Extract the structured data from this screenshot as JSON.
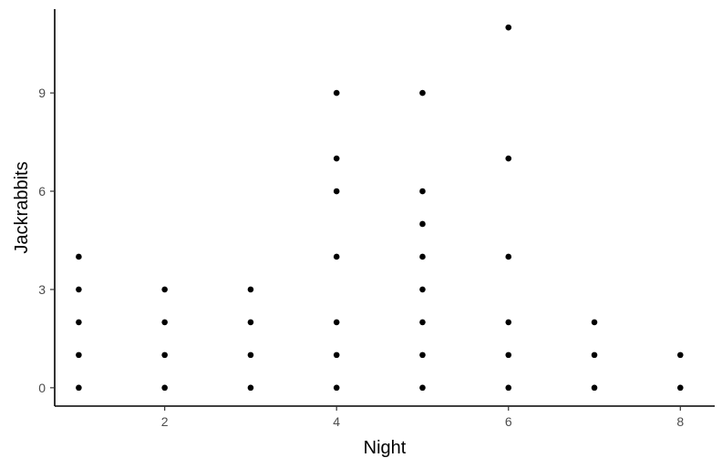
{
  "chart_data": {
    "type": "scatter",
    "title": "",
    "xlabel": "Night",
    "ylabel": "Jackrabbits",
    "xlim": [
      0.72,
      8.4
    ],
    "ylim": [
      -0.56,
      11.56
    ],
    "x_ticks": [
      2,
      4,
      6,
      8
    ],
    "y_ticks": [
      0,
      3,
      6,
      9
    ],
    "grid": false,
    "legend": "none",
    "point_color": "#000000",
    "points": [
      {
        "x": 1,
        "y": 0
      },
      {
        "x": 1,
        "y": 1
      },
      {
        "x": 1,
        "y": 2
      },
      {
        "x": 1,
        "y": 3
      },
      {
        "x": 1,
        "y": 4
      },
      {
        "x": 2,
        "y": 0
      },
      {
        "x": 2,
        "y": 1
      },
      {
        "x": 2,
        "y": 2
      },
      {
        "x": 2,
        "y": 3
      },
      {
        "x": 3,
        "y": 0
      },
      {
        "x": 3,
        "y": 1
      },
      {
        "x": 3,
        "y": 2
      },
      {
        "x": 3,
        "y": 3
      },
      {
        "x": 4,
        "y": 0
      },
      {
        "x": 4,
        "y": 1
      },
      {
        "x": 4,
        "y": 2
      },
      {
        "x": 4,
        "y": 4
      },
      {
        "x": 4,
        "y": 6
      },
      {
        "x": 4,
        "y": 7
      },
      {
        "x": 4,
        "y": 9
      },
      {
        "x": 5,
        "y": 0
      },
      {
        "x": 5,
        "y": 1
      },
      {
        "x": 5,
        "y": 2
      },
      {
        "x": 5,
        "y": 3
      },
      {
        "x": 5,
        "y": 4
      },
      {
        "x": 5,
        "y": 5
      },
      {
        "x": 5,
        "y": 6
      },
      {
        "x": 5,
        "y": 9
      },
      {
        "x": 6,
        "y": 0
      },
      {
        "x": 6,
        "y": 1
      },
      {
        "x": 6,
        "y": 2
      },
      {
        "x": 6,
        "y": 4
      },
      {
        "x": 6,
        "y": 7
      },
      {
        "x": 6,
        "y": 11
      },
      {
        "x": 7,
        "y": 0
      },
      {
        "x": 7,
        "y": 1
      },
      {
        "x": 7,
        "y": 2
      },
      {
        "x": 8,
        "y": 0
      },
      {
        "x": 8,
        "y": 1
      }
    ]
  }
}
